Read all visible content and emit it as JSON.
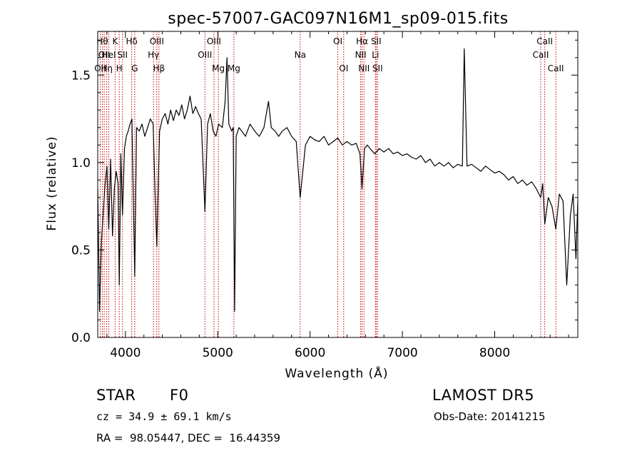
{
  "chart_data": {
    "type": "line",
    "title": "spec-57007-GAC097N16M1_sp09-015.fits",
    "xlabel": "Wavelength (Å)",
    "ylabel": "Flux (relative)",
    "xlim": [
      3700,
      8900
    ],
    "ylim": [
      0.0,
      1.75
    ],
    "xticks": [
      4000,
      5000,
      6000,
      7000,
      8000
    ],
    "yticks": [
      "0.0",
      "0.5",
      "1.0",
      "1.5"
    ],
    "grid": false,
    "series": [
      {
        "x": [
          3700,
          3720,
          3740,
          3760,
          3780,
          3800,
          3820,
          3840,
          3860,
          3880,
          3900,
          3920,
          3933,
          3950,
          3968,
          3990,
          4010,
          4030,
          4050,
          4070,
          4101,
          4120,
          4150,
          4180,
          4210,
          4240,
          4270,
          4300,
          4320,
          4340,
          4370,
          4400,
          4430,
          4460,
          4490,
          4520,
          4550,
          4580,
          4610,
          4640,
          4670,
          4700,
          4730,
          4760,
          4790,
          4820,
          4861,
          4890,
          4920,
          4950,
          4980,
          5010,
          5050,
          5080,
          5100,
          5120,
          5150,
          5167,
          5183,
          5200,
          5230,
          5260,
          5300,
          5350,
          5400,
          5450,
          5500,
          5550,
          5580,
          5620,
          5660,
          5700,
          5750,
          5800,
          5850,
          5893,
          5950,
          6000,
          6050,
          6100,
          6150,
          6200,
          6250,
          6300,
          6350,
          6400,
          6450,
          6500,
          6540,
          6563,
          6590,
          6620,
          6650,
          6700,
          6750,
          6800,
          6850,
          6900,
          6950,
          7000,
          7050,
          7100,
          7150,
          7200,
          7250,
          7300,
          7350,
          7400,
          7450,
          7500,
          7550,
          7600,
          7650,
          7670,
          7700,
          7750,
          7800,
          7850,
          7900,
          7950,
          8000,
          8050,
          8100,
          8150,
          8200,
          8250,
          8300,
          8350,
          8400,
          8450,
          8498,
          8520,
          8542,
          8580,
          8620,
          8662,
          8700,
          8740,
          8780,
          8820,
          8850,
          8880,
          8900
        ],
        "y": [
          0.85,
          0.15,
          0.55,
          0.72,
          0.88,
          0.98,
          0.62,
          1.02,
          0.58,
          0.85,
          0.95,
          0.88,
          0.3,
          1.05,
          0.7,
          1.08,
          1.15,
          1.18,
          1.22,
          1.25,
          0.35,
          1.2,
          1.18,
          1.22,
          1.15,
          1.2,
          1.25,
          1.22,
          0.85,
          0.52,
          1.18,
          1.25,
          1.28,
          1.22,
          1.3,
          1.24,
          1.3,
          1.27,
          1.33,
          1.25,
          1.3,
          1.38,
          1.28,
          1.32,
          1.28,
          1.25,
          0.72,
          1.22,
          1.28,
          1.18,
          1.15,
          1.22,
          1.2,
          1.35,
          1.6,
          1.22,
          1.18,
          1.2,
          0.15,
          1.15,
          1.2,
          1.18,
          1.15,
          1.22,
          1.18,
          1.15,
          1.2,
          1.35,
          1.2,
          1.18,
          1.15,
          1.18,
          1.2,
          1.15,
          1.12,
          0.8,
          1.1,
          1.15,
          1.13,
          1.12,
          1.15,
          1.1,
          1.12,
          1.14,
          1.1,
          1.12,
          1.1,
          1.11,
          1.05,
          0.85,
          1.08,
          1.1,
          1.08,
          1.05,
          1.08,
          1.06,
          1.08,
          1.05,
          1.06,
          1.04,
          1.05,
          1.03,
          1.02,
          1.04,
          1.0,
          1.02,
          0.98,
          1.0,
          0.98,
          1.0,
          0.97,
          0.99,
          0.98,
          1.65,
          0.98,
          0.99,
          0.97,
          0.95,
          0.98,
          0.96,
          0.94,
          0.95,
          0.93,
          0.9,
          0.92,
          0.88,
          0.9,
          0.87,
          0.89,
          0.85,
          0.8,
          0.88,
          0.65,
          0.8,
          0.75,
          0.62,
          0.82,
          0.78,
          0.3,
          0.7,
          0.82,
          0.45,
          0.78
        ]
      }
    ],
    "lines": [
      {
        "x": 3727,
        "label": "OII",
        "row": 2
      },
      {
        "x": 3750,
        "label": "Hθ",
        "row": 0
      },
      {
        "x": 3770,
        "label": "OII",
        "row": 1
      },
      {
        "x": 3798,
        "label": "Hη",
        "row": 2
      },
      {
        "x": 3820,
        "label": "HeI",
        "row": 1
      },
      {
        "x": 3889,
        "label": "K",
        "row": 0
      },
      {
        "x": 3933,
        "label": "H",
        "row": 2
      },
      {
        "x": 3968,
        "label": "SII",
        "row": 1
      },
      {
        "x": 4068,
        "label": "Hδ",
        "row": 0
      },
      {
        "x": 4101,
        "label": "G",
        "row": 2
      },
      {
        "x": 4304,
        "label": "Hγ",
        "row": 1
      },
      {
        "x": 4340,
        "label": "OIII",
        "row": 0
      },
      {
        "x": 4363,
        "label": "Hβ",
        "row": 2
      },
      {
        "x": 4861,
        "label": "OIII",
        "row": 1
      },
      {
        "x": 4959,
        "label": "OIII",
        "row": 0
      },
      {
        "x": 5007,
        "label": "Mg",
        "row": 2
      },
      {
        "x": 5175,
        "label": "Mg",
        "row": 2
      },
      {
        "x": 5893,
        "label": "Na",
        "row": 1
      },
      {
        "x": 6300,
        "label": "OI",
        "row": 0
      },
      {
        "x": 6364,
        "label": "OI",
        "row": 2
      },
      {
        "x": 6548,
        "label": "NII",
        "row": 1
      },
      {
        "x": 6563,
        "label": "Hα",
        "row": 0
      },
      {
        "x": 6584,
        "label": "NII",
        "row": 2
      },
      {
        "x": 6708,
        "label": "Li",
        "row": 1
      },
      {
        "x": 6716,
        "label": "SII",
        "row": 0
      },
      {
        "x": 6731,
        "label": "SII",
        "row": 2
      },
      {
        "x": 8498,
        "label": "CaII",
        "row": 1
      },
      {
        "x": 8542,
        "label": "CaII",
        "row": 0
      },
      {
        "x": 8662,
        "label": "CaII",
        "row": 2
      }
    ]
  },
  "info": {
    "class_label": "STAR",
    "subclass": "F0",
    "survey": "LAMOST DR5",
    "velocity": "cz = 34.9 ± 69.1 km/s",
    "obs_date": "Obs-Date: 20141215",
    "coords": "RA =  98.05447, DEC =  16.44359"
  }
}
